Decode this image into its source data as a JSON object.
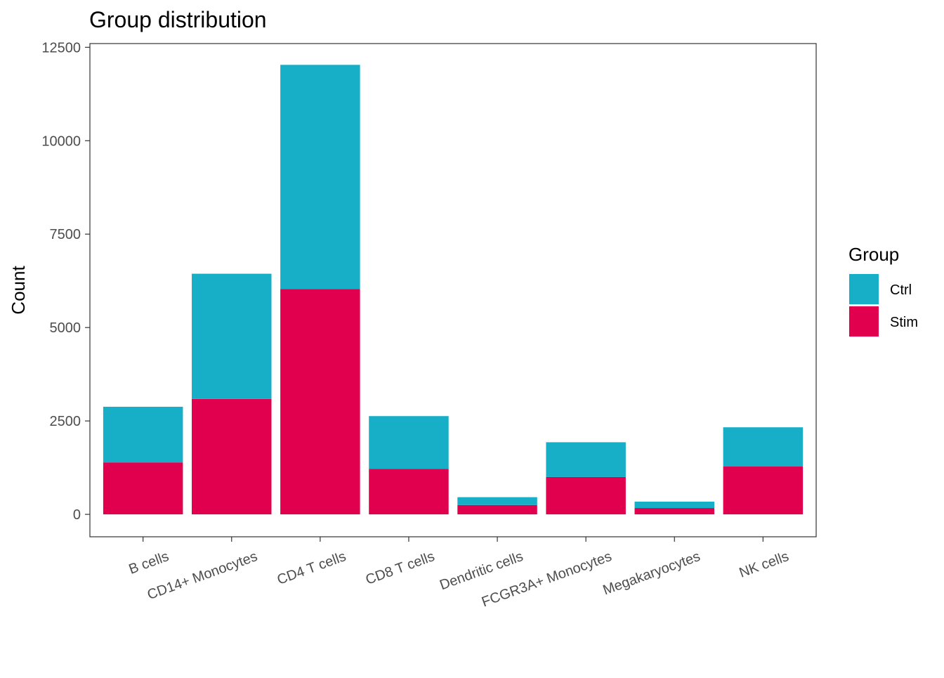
{
  "chart_data": {
    "type": "bar",
    "stacked": true,
    "title": "Group distribution",
    "xlabel": "",
    "ylabel": "Count",
    "ylim": [
      -600,
      12600
    ],
    "yticks": [
      0,
      2500,
      5000,
      7500,
      10000,
      12500
    ],
    "ytick_labels": [
      "0",
      "2500",
      "5000",
      "7500",
      "10000",
      "12500"
    ],
    "categories": [
      "B cells",
      "CD14+ Monocytes",
      "CD4 T cells",
      "CD8 T cells",
      "Dendritic cells",
      "FCGR3A+ Monocytes",
      "Megakaryocytes",
      "NK cells"
    ],
    "series": [
      {
        "name": "Stim",
        "color": "#E0004E",
        "values": [
          1390,
          3090,
          6030,
          1220,
          250,
          1000,
          170,
          1280
        ]
      },
      {
        "name": "Ctrl",
        "color": "#17AFC8",
        "values": [
          1490,
          3350,
          6000,
          1410,
          210,
          930,
          170,
          1050
        ]
      }
    ],
    "legend": {
      "title": "Group",
      "position": "right",
      "entries": [
        {
          "label": "Ctrl",
          "color": "#17AFC8"
        },
        {
          "label": "Stim",
          "color": "#E0004E"
        }
      ]
    },
    "grid": false,
    "panel_border": true
  }
}
